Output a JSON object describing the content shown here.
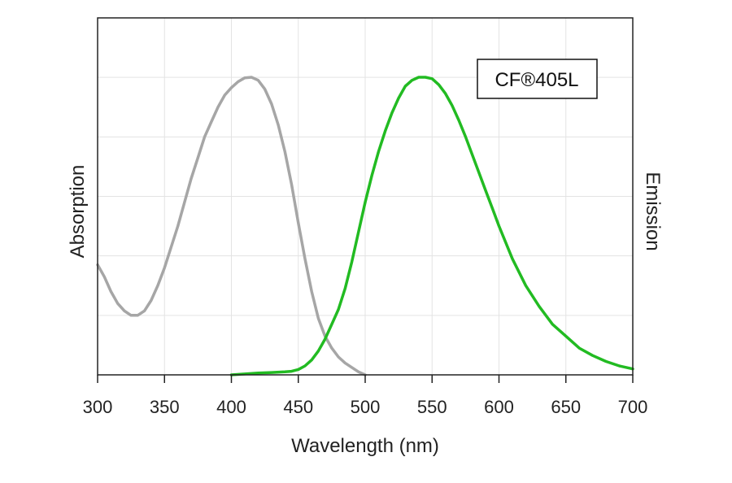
{
  "chart_data": {
    "type": "line",
    "xlabel": "Wavelength (nm)",
    "ylabel_left": "Absorption",
    "ylabel_right": "Emission",
    "xlim": [
      300,
      700
    ],
    "ylim": [
      0,
      1
    ],
    "xticks": [
      300,
      350,
      400,
      450,
      500,
      550,
      600,
      650,
      700
    ],
    "grid": true,
    "legend_label": "CF®405L",
    "legend_position": "top-right",
    "series": [
      {
        "role": "absorption",
        "color": "#a6a6a6",
        "points": [
          [
            300,
            0.37
          ],
          [
            305,
            0.33
          ],
          [
            310,
            0.28
          ],
          [
            315,
            0.24
          ],
          [
            320,
            0.215
          ],
          [
            325,
            0.2
          ],
          [
            330,
            0.2
          ],
          [
            335,
            0.215
          ],
          [
            340,
            0.25
          ],
          [
            345,
            0.3
          ],
          [
            350,
            0.36
          ],
          [
            355,
            0.43
          ],
          [
            360,
            0.5
          ],
          [
            365,
            0.58
          ],
          [
            370,
            0.66
          ],
          [
            375,
            0.73
          ],
          [
            380,
            0.8
          ],
          [
            385,
            0.85
          ],
          [
            390,
            0.9
          ],
          [
            395,
            0.94
          ],
          [
            400,
            0.965
          ],
          [
            405,
            0.985
          ],
          [
            410,
            0.998
          ],
          [
            415,
            1.0
          ],
          [
            420,
            0.99
          ],
          [
            425,
            0.96
          ],
          [
            430,
            0.91
          ],
          [
            435,
            0.84
          ],
          [
            440,
            0.75
          ],
          [
            445,
            0.64
          ],
          [
            450,
            0.51
          ],
          [
            455,
            0.39
          ],
          [
            460,
            0.28
          ],
          [
            465,
            0.19
          ],
          [
            470,
            0.13
          ],
          [
            475,
            0.09
          ],
          [
            480,
            0.06
          ],
          [
            485,
            0.04
          ],
          [
            490,
            0.025
          ],
          [
            495,
            0.01
          ],
          [
            500,
            0.0
          ]
        ]
      },
      {
        "role": "emission",
        "color": "#22bb22",
        "points": [
          [
            400,
            0.0
          ],
          [
            410,
            0.003
          ],
          [
            420,
            0.006
          ],
          [
            430,
            0.008
          ],
          [
            440,
            0.01
          ],
          [
            445,
            0.012
          ],
          [
            450,
            0.018
          ],
          [
            455,
            0.03
          ],
          [
            460,
            0.05
          ],
          [
            465,
            0.08
          ],
          [
            470,
            0.12
          ],
          [
            475,
            0.17
          ],
          [
            480,
            0.22
          ],
          [
            485,
            0.29
          ],
          [
            490,
            0.38
          ],
          [
            495,
            0.48
          ],
          [
            500,
            0.58
          ],
          [
            505,
            0.67
          ],
          [
            510,
            0.75
          ],
          [
            515,
            0.82
          ],
          [
            520,
            0.88
          ],
          [
            525,
            0.93
          ],
          [
            530,
            0.97
          ],
          [
            535,
            0.99
          ],
          [
            540,
            1.0
          ],
          [
            545,
            1.0
          ],
          [
            550,
            0.995
          ],
          [
            555,
            0.975
          ],
          [
            560,
            0.945
          ],
          [
            565,
            0.905
          ],
          [
            570,
            0.855
          ],
          [
            575,
            0.8
          ],
          [
            580,
            0.74
          ],
          [
            585,
            0.68
          ],
          [
            590,
            0.62
          ],
          [
            595,
            0.56
          ],
          [
            600,
            0.5
          ],
          [
            610,
            0.39
          ],
          [
            620,
            0.3
          ],
          [
            630,
            0.23
          ],
          [
            640,
            0.17
          ],
          [
            650,
            0.13
          ],
          [
            660,
            0.09
          ],
          [
            670,
            0.065
          ],
          [
            680,
            0.045
          ],
          [
            690,
            0.03
          ],
          [
            700,
            0.02
          ]
        ]
      }
    ]
  }
}
